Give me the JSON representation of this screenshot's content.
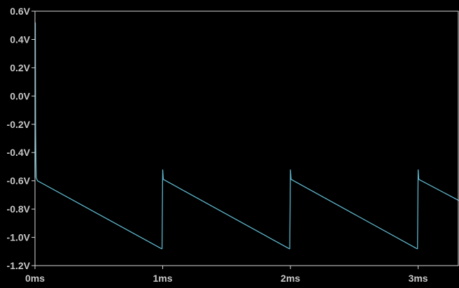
{
  "chart_data": {
    "type": "line",
    "title": "",
    "xlabel": "",
    "ylabel": "",
    "x_unit": "ms",
    "y_unit": "V",
    "xlim": [
      0,
      3.32
    ],
    "ylim": [
      -1.2,
      0.6
    ],
    "x_ticks": [
      {
        "value": 0,
        "label": "0ms"
      },
      {
        "value": 1,
        "label": "1ms"
      },
      {
        "value": 2,
        "label": "2ms"
      },
      {
        "value": 3,
        "label": "3ms"
      }
    ],
    "y_ticks": [
      {
        "value": 0.6,
        "label": "0.6V"
      },
      {
        "value": 0.4,
        "label": "0.4V"
      },
      {
        "value": 0.2,
        "label": "0.2V"
      },
      {
        "value": 0.0,
        "label": "0.0V"
      },
      {
        "value": -0.2,
        "label": "-0.2V"
      },
      {
        "value": -0.4,
        "label": "-0.4V"
      },
      {
        "value": -0.6,
        "label": "-0.6V"
      },
      {
        "value": -0.8,
        "label": "-0.8V"
      },
      {
        "value": -1.0,
        "label": "-1.0V"
      },
      {
        "value": -1.2,
        "label": "-1.2V"
      }
    ],
    "grid": false,
    "series": [
      {
        "color": "#5fb6cc",
        "x": [
          0.0,
          0.003,
          0.005,
          0.008,
          0.01,
          0.02,
          0.99,
          0.995,
          1.0,
          1.005,
          1.99,
          1.995,
          2.0,
          2.005,
          2.99,
          2.995,
          3.0,
          3.005,
          3.32
        ],
        "y": [
          -0.58,
          0.52,
          -0.24,
          -0.5,
          -0.58,
          -0.6,
          -1.08,
          -1.08,
          -0.52,
          -0.59,
          -1.08,
          -1.08,
          -0.52,
          -0.59,
          -1.08,
          -1.08,
          -0.52,
          -0.59,
          -0.74
        ]
      }
    ]
  },
  "colors": {
    "background": "#000000",
    "axis": "#d8d8d8",
    "tick_label": "#c8c8c8",
    "trace": "#5fb6cc"
  }
}
